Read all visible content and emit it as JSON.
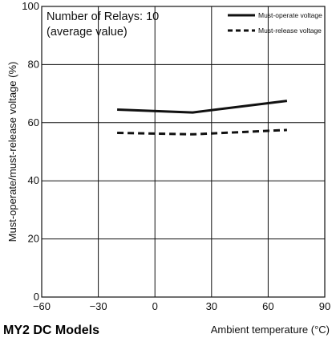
{
  "chart_data": {
    "type": "line",
    "xlabel": "Ambient temperature (°C)",
    "ylabel": "Must-operate/must-release voltage (%)",
    "xlim": [
      -60,
      90
    ],
    "ylim": [
      0,
      100
    ],
    "x_ticks": [
      -60,
      -30,
      0,
      30,
      60,
      90
    ],
    "x_tick_labels": [
      "−60",
      "−30",
      "0",
      "30",
      "60",
      "90"
    ],
    "y_ticks": [
      0,
      20,
      40,
      60,
      80,
      100
    ],
    "y_tick_labels": [
      "0",
      "20",
      "40",
      "60",
      "80",
      "100"
    ],
    "grid": true,
    "legend_position": "top-right",
    "annotation": {
      "line1": "Number of Relays: 10",
      "line2": "(average value)"
    },
    "series": [
      {
        "name": "Must-operate voltage",
        "style": "solid",
        "color": "#111111",
        "x": [
          -20,
          20,
          70
        ],
        "y": [
          64.5,
          63.5,
          67.5
        ]
      },
      {
        "name": "Must-release voltage",
        "style": "dashed",
        "color": "#111111",
        "x": [
          -20,
          20,
          70
        ],
        "y": [
          56.5,
          56.0,
          57.5
        ]
      }
    ]
  },
  "caption": "MY2 DC Models"
}
